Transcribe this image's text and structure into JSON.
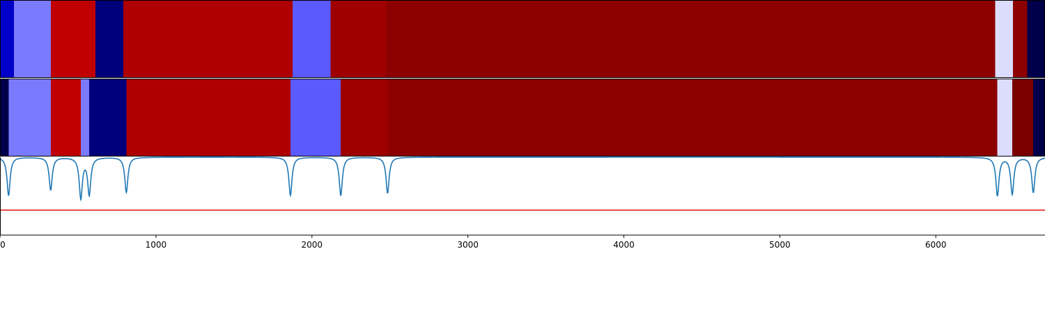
{
  "chart_data": {
    "type": "heatmap",
    "title": "",
    "xlabel": "",
    "ylabel": "",
    "xlim": [
      0,
      6700
    ],
    "x_ticks": [
      0,
      1000,
      2000,
      3000,
      4000,
      5000,
      6000
    ],
    "x_tick_labels": [
      "0",
      "1000",
      "2000",
      "3000",
      "4000",
      "5000",
      "6000"
    ],
    "grid": false,
    "legend": "none",
    "segment_tracks": [
      {
        "segments": [
          {
            "start": 0,
            "end": 90,
            "color": "#0000c8"
          },
          {
            "start": 90,
            "end": 325,
            "color": "#7a7aff"
          },
          {
            "start": 325,
            "end": 612,
            "color": "#c00000"
          },
          {
            "start": 612,
            "end": 790,
            "color": "#00007a"
          },
          {
            "start": 790,
            "end": 1875,
            "color": "#ae0000"
          },
          {
            "start": 1875,
            "end": 2120,
            "color": "#5a5aff"
          },
          {
            "start": 2120,
            "end": 2475,
            "color": "#9e0000"
          },
          {
            "start": 2475,
            "end": 6380,
            "color": "#8c0000"
          },
          {
            "start": 6380,
            "end": 6495,
            "color": "#dcdcff"
          },
          {
            "start": 6495,
            "end": 6585,
            "color": "#8c0000"
          },
          {
            "start": 6585,
            "end": 6700,
            "color": "#00004a"
          }
        ]
      },
      {
        "segments": [
          {
            "start": 0,
            "end": 55,
            "color": "#00004a"
          },
          {
            "start": 55,
            "end": 325,
            "color": "#7a7aff"
          },
          {
            "start": 325,
            "end": 518,
            "color": "#c00000"
          },
          {
            "start": 518,
            "end": 572,
            "color": "#7a7aff"
          },
          {
            "start": 572,
            "end": 810,
            "color": "#00007a"
          },
          {
            "start": 810,
            "end": 1862,
            "color": "#ae0000"
          },
          {
            "start": 1862,
            "end": 2185,
            "color": "#5a5aff"
          },
          {
            "start": 2185,
            "end": 2485,
            "color": "#9e0000"
          },
          {
            "start": 2485,
            "end": 6395,
            "color": "#8c0000"
          },
          {
            "start": 6395,
            "end": 6490,
            "color": "#dcdcff"
          },
          {
            "start": 6490,
            "end": 6625,
            "color": "#7a0000"
          },
          {
            "start": 6625,
            "end": 6700,
            "color": "#00004a"
          }
        ]
      }
    ],
    "dip_line": {
      "color": "#1f77b4",
      "dips": [
        {
          "x": 55,
          "depth": 0.49
        },
        {
          "x": 325,
          "depth": 0.42
        },
        {
          "x": 518,
          "depth": 0.52
        },
        {
          "x": 572,
          "depth": 0.47
        },
        {
          "x": 810,
          "depth": 0.45
        },
        {
          "x": 1862,
          "depth": 0.49
        },
        {
          "x": 2185,
          "depth": 0.49
        },
        {
          "x": 2485,
          "depth": 0.46
        },
        {
          "x": 6395,
          "depth": 0.49
        },
        {
          "x": 6490,
          "depth": 0.47
        },
        {
          "x": 6625,
          "depth": 0.45
        }
      ]
    },
    "threshold_line": {
      "color": "#e01010",
      "value": 0.68
    }
  }
}
